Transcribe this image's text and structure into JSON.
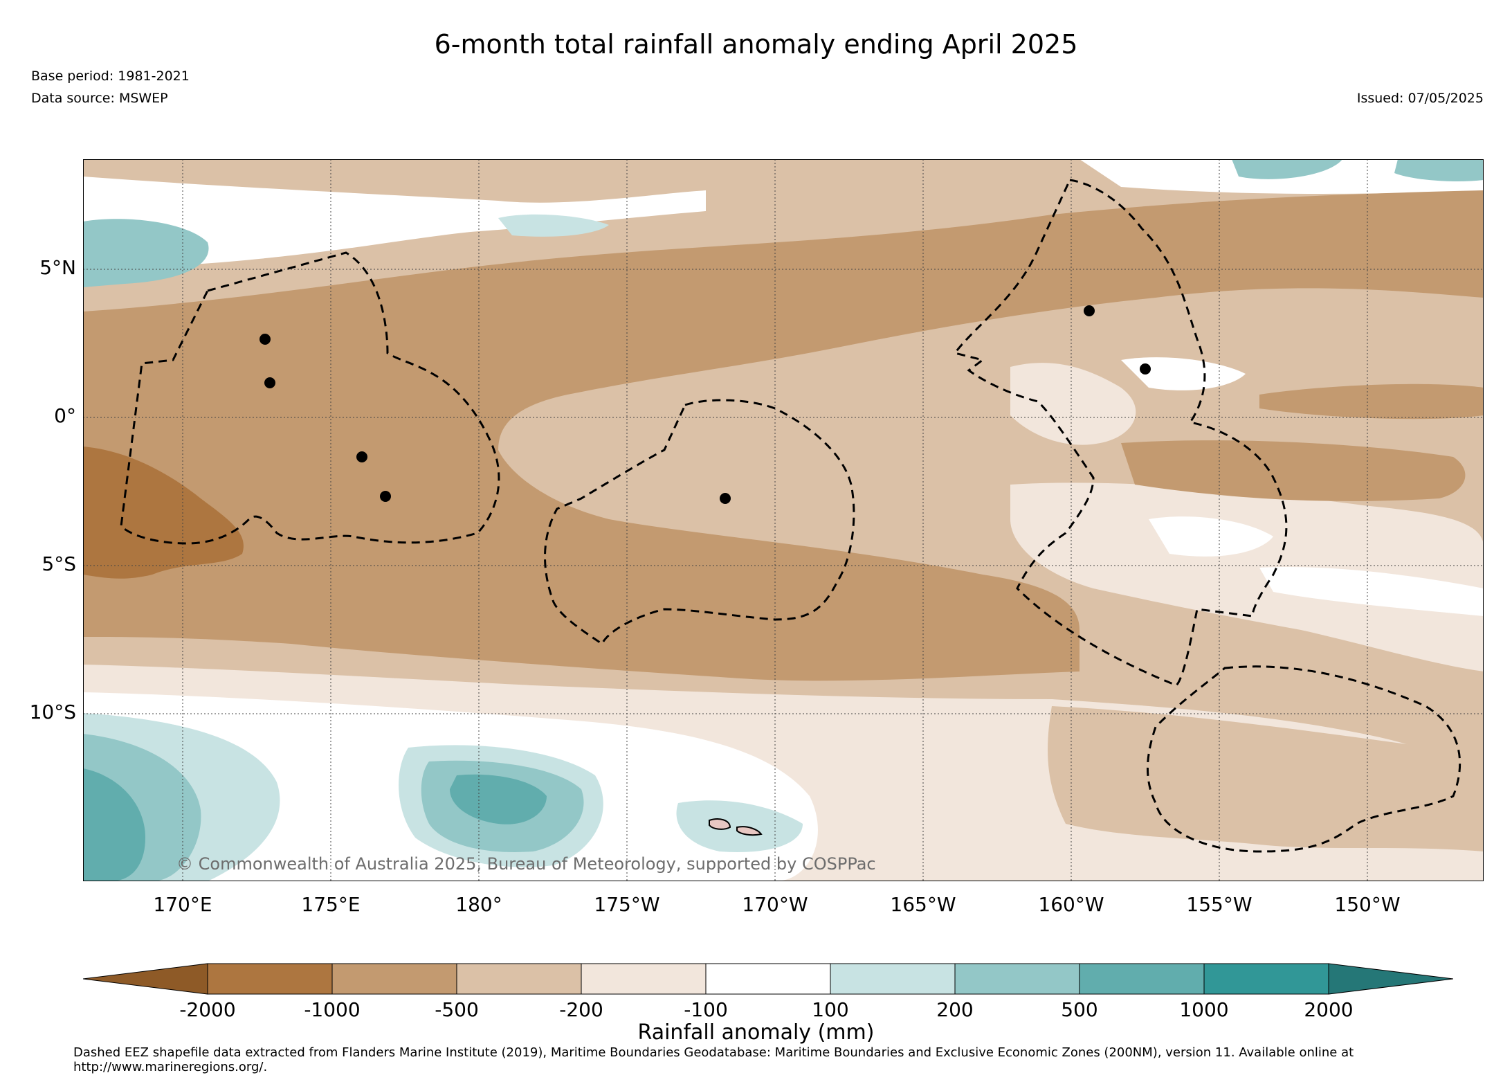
{
  "title": "6-month total rainfall anomaly ending April 2025",
  "base_period": "Base period: 1981-2021",
  "data_source": "Data source: MSWEP",
  "issued": "Issued: 07/05/2025",
  "copyright": "© Commonwealth of Australia 2025, Bureau of Meteorology, supported by COSPPac",
  "lat_ticks": [
    "5°N",
    "0°",
    "5°S",
    "10°S"
  ],
  "lon_ticks": [
    "170°E",
    "175°E",
    "180°",
    "175°W",
    "170°W",
    "165°W",
    "160°W",
    "155°W",
    "150°W"
  ],
  "colorbar": {
    "title": "Rainfall anomaly (mm)",
    "tick_labels": [
      "-2000",
      "-1000",
      "-500",
      "-200",
      "-100",
      "100",
      "200",
      "500",
      "1000",
      "2000"
    ],
    "colors": [
      "#8e5a27",
      "#ad7640",
      "#c39a70",
      "#dbc1a7",
      "#f2e6dc",
      "#ffffff",
      "#c8e3e3",
      "#93c7c7",
      "#61adad",
      "#319797",
      "#257777"
    ]
  },
  "footer": "Dashed EEZ shapefile data extracted from Flanders Marine Institute (2019), Maritime Boundaries Geodatabase: Maritime Boundaries and Exclusive Economic Zones (200NM), version 11. Available online at http://www.marineregions.org/."
}
